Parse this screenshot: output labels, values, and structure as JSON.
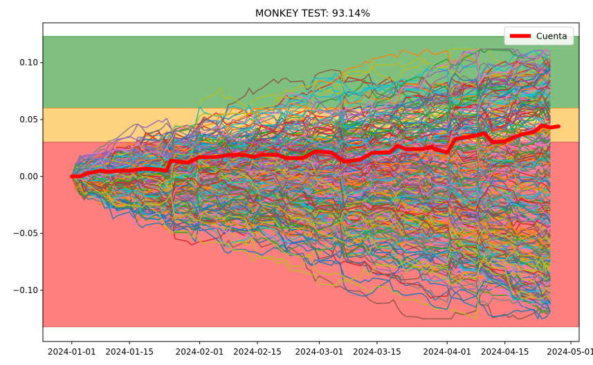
{
  "chart_data": {
    "type": "line",
    "title": "MONKEY TEST: 93.14%",
    "xlabel": "",
    "ylabel": "",
    "x_start": "2024-01-01",
    "x_end": "2024-04-28",
    "xlim": [
      "2023-12-25",
      "2024-05-03"
    ],
    "ylim": [
      -0.145,
      0.135
    ],
    "x_ticks": [
      "2024-01-01",
      "2024-01-15",
      "2024-02-01",
      "2024-02-15",
      "2024-03-01",
      "2024-03-15",
      "2024-04-01",
      "2024-04-15",
      "2024-05-01"
    ],
    "y_ticks": [
      0.1,
      0.05,
      0.0,
      -0.05,
      -0.1
    ],
    "y_tick_labels": [
      "0.10",
      "0.05",
      "0.00",
      "−0.05",
      "−0.10"
    ],
    "bands": [
      {
        "name": "green",
        "from": 0.06,
        "to": 0.123,
        "color": "#7fbf7f",
        "edge": "#4caf50"
      },
      {
        "name": "orange",
        "from": 0.03,
        "to": 0.06,
        "color": "#ffd27f",
        "edge": "#e8a33c"
      },
      {
        "name": "red",
        "from": -0.132,
        "to": 0.03,
        "color": "#ff7f7f",
        "edge": "#e06060"
      }
    ],
    "simulated_paths": {
      "count": 300,
      "final_range": [
        -0.12,
        0.11
      ]
    },
    "series": [
      {
        "name": "Cuenta",
        "color": "#ff0000",
        "points": [
          [
            "2024-01-01",
            0.0
          ],
          [
            "2024-01-03",
            0.0
          ],
          [
            "2024-01-05",
            0.003
          ],
          [
            "2024-01-08",
            0.005
          ],
          [
            "2024-01-10",
            0.004
          ],
          [
            "2024-01-12",
            0.005
          ],
          [
            "2024-01-15",
            0.005
          ],
          [
            "2024-01-17",
            0.006
          ],
          [
            "2024-01-19",
            0.007
          ],
          [
            "2024-01-22",
            0.006
          ],
          [
            "2024-01-24",
            0.005
          ],
          [
            "2024-01-25",
            0.014
          ],
          [
            "2024-01-29",
            0.012
          ],
          [
            "2024-02-01",
            0.017
          ],
          [
            "2024-02-05",
            0.017
          ],
          [
            "2024-02-08",
            0.019
          ],
          [
            "2024-02-12",
            0.019
          ],
          [
            "2024-02-14",
            0.017
          ],
          [
            "2024-02-16",
            0.019
          ],
          [
            "2024-02-20",
            0.019
          ],
          [
            "2024-02-22",
            0.016
          ],
          [
            "2024-02-26",
            0.016
          ],
          [
            "2024-02-29",
            0.022
          ],
          [
            "2024-03-04",
            0.021
          ],
          [
            "2024-03-07",
            0.013
          ],
          [
            "2024-03-11",
            0.015
          ],
          [
            "2024-03-14",
            0.021
          ],
          [
            "2024-03-18",
            0.021
          ],
          [
            "2024-03-20",
            0.027
          ],
          [
            "2024-03-22",
            0.024
          ],
          [
            "2024-03-26",
            0.024
          ],
          [
            "2024-03-28",
            0.026
          ],
          [
            "2024-03-30",
            0.023
          ],
          [
            "2024-04-01",
            0.021
          ],
          [
            "2024-04-03",
            0.033
          ],
          [
            "2024-04-05",
            0.034
          ],
          [
            "2024-04-08",
            0.036
          ],
          [
            "2024-04-10",
            0.038
          ],
          [
            "2024-04-12",
            0.03
          ],
          [
            "2024-04-15",
            0.031
          ],
          [
            "2024-04-17",
            0.034
          ],
          [
            "2024-04-19",
            0.037
          ],
          [
            "2024-04-22",
            0.039
          ],
          [
            "2024-04-24",
            0.045
          ],
          [
            "2024-04-26",
            0.043
          ],
          [
            "2024-04-28",
            0.044
          ]
        ]
      }
    ],
    "legend": {
      "placement": "top-right",
      "entries": [
        "Cuenta"
      ]
    },
    "grid": false
  },
  "palette": [
    "#1f77b4",
    "#ff7f0e",
    "#2ca02c",
    "#d62728",
    "#9467bd",
    "#8c564b",
    "#e377c2",
    "#7f7f7f",
    "#bcbd22",
    "#17becf"
  ]
}
